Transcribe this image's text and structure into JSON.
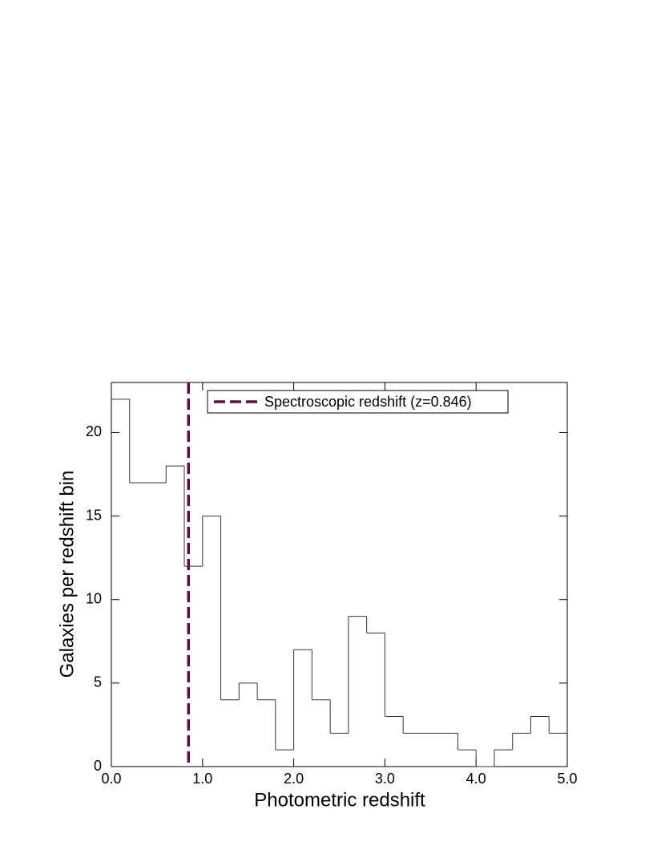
{
  "chart_data": {
    "type": "histogram",
    "xlabel": "Photometric redshift",
    "ylabel": "Galaxies per redshift bin",
    "bins": [
      0.0,
      0.2,
      0.4,
      0.6,
      0.8,
      1.0,
      1.2,
      1.4,
      1.6,
      1.8,
      2.0,
      2.2,
      2.4,
      2.6,
      2.8,
      3.0,
      3.2,
      3.4,
      3.6,
      3.8,
      4.0,
      4.2,
      4.4,
      4.6,
      4.8,
      5.0
    ],
    "values": [
      22,
      17,
      17,
      18,
      12,
      15,
      4,
      5,
      4,
      1,
      7,
      4,
      2,
      9,
      8,
      3,
      2,
      2,
      2,
      1,
      0,
      1,
      2,
      3,
      2
    ],
    "color": "#333333",
    "xlim": [
      0,
      5
    ],
    "ylim": [
      0,
      23
    ],
    "xticks": [
      {
        "value": 0,
        "label": "0.0"
      },
      {
        "value": 1,
        "label": "1.0"
      },
      {
        "value": 2,
        "label": "2.0"
      },
      {
        "value": 3,
        "label": "3.0"
      },
      {
        "value": 4,
        "label": "4.0"
      },
      {
        "value": 5,
        "label": "5.0"
      }
    ],
    "yticks": [
      0,
      5,
      10,
      15,
      20
    ],
    "reference_line": {
      "name": "Spectroscopic redshift (z=0.846)",
      "x": 0.846,
      "color": "#5e0f45"
    },
    "legend": "top"
  }
}
